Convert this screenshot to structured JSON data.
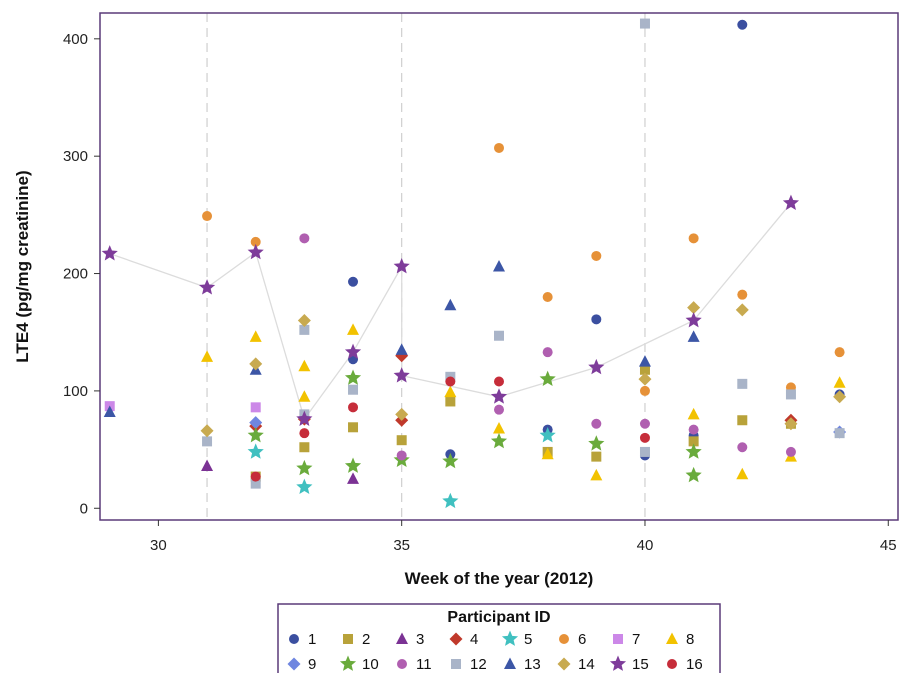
{
  "chart_data": {
    "type": "scatter",
    "title": "",
    "xlabel": "Week of the year (2012)",
    "ylabel": "LTE4 (pg/mg creatinine)",
    "xlim": [
      28.8,
      45.2
    ],
    "ylim": [
      -10,
      422
    ],
    "xticks": [
      30,
      35,
      40,
      45
    ],
    "yticks": [
      0,
      100,
      200,
      300,
      400
    ],
    "reference_lines_x": [
      31,
      35,
      40
    ],
    "grid": false,
    "legend": {
      "title": "Participant ID",
      "position": "bottom"
    },
    "series": [
      {
        "name": "1",
        "marker": "circle",
        "color": "#3B4FA0",
        "points": [
          [
            34,
            127
          ],
          [
            34,
            193
          ],
          [
            36,
            46
          ],
          [
            38,
            67
          ],
          [
            39,
            161
          ],
          [
            40,
            45
          ],
          [
            41,
            62
          ],
          [
            42,
            412
          ],
          [
            44,
            97
          ]
        ]
      },
      {
        "name": "2",
        "marker": "square",
        "color": "#B8A23A",
        "points": [
          [
            32,
            27
          ],
          [
            33,
            52
          ],
          [
            34,
            69
          ],
          [
            35,
            58
          ],
          [
            36,
            91
          ],
          [
            38,
            48
          ],
          [
            39,
            44
          ],
          [
            40,
            118
          ],
          [
            41,
            57
          ],
          [
            42,
            75
          ],
          [
            43,
            72
          ]
        ]
      },
      {
        "name": "3",
        "marker": "triangle",
        "color": "#7B3294",
        "points": [
          [
            31,
            36
          ],
          [
            34,
            25
          ]
        ]
      },
      {
        "name": "4",
        "marker": "diamond",
        "color": "#C0392B",
        "points": [
          [
            32,
            70
          ],
          [
            33,
            76
          ],
          [
            35,
            130
          ],
          [
            35,
            75
          ],
          [
            43,
            75
          ]
        ]
      },
      {
        "name": "5",
        "marker": "star",
        "color": "#40C0C0",
        "points": [
          [
            32,
            48
          ],
          [
            33,
            18
          ],
          [
            36,
            6
          ],
          [
            38,
            62
          ]
        ]
      },
      {
        "name": "6",
        "marker": "circle",
        "color": "#E69138",
        "points": [
          [
            31,
            249
          ],
          [
            32,
            227
          ],
          [
            37,
            307
          ],
          [
            38,
            180
          ],
          [
            39,
            215
          ],
          [
            40,
            100
          ],
          [
            41,
            230
          ],
          [
            42,
            182
          ],
          [
            43,
            103
          ],
          [
            44,
            133
          ]
        ]
      },
      {
        "name": "7",
        "marker": "square",
        "color": "#CC88E8",
        "points": [
          [
            29,
            87
          ],
          [
            32,
            86
          ]
        ]
      },
      {
        "name": "8",
        "marker": "triangle",
        "color": "#F2C200",
        "points": [
          [
            31,
            129
          ],
          [
            32,
            146
          ],
          [
            33,
            121
          ],
          [
            33,
            95
          ],
          [
            34,
            152
          ],
          [
            36,
            99
          ],
          [
            37,
            68
          ],
          [
            38,
            46
          ],
          [
            39,
            28
          ],
          [
            41,
            80
          ],
          [
            42,
            29
          ],
          [
            43,
            44
          ],
          [
            44,
            107
          ]
        ]
      },
      {
        "name": "9",
        "marker": "diamond",
        "color": "#6F86E0",
        "points": [
          [
            32,
            73
          ],
          [
            44,
            65
          ]
        ]
      },
      {
        "name": "10",
        "marker": "star",
        "color": "#6AAB3C",
        "points": [
          [
            32,
            62
          ],
          [
            33,
            34
          ],
          [
            34,
            36
          ],
          [
            34,
            111
          ],
          [
            35,
            41
          ],
          [
            36,
            40
          ],
          [
            37,
            57
          ],
          [
            38,
            110
          ],
          [
            39,
            55
          ],
          [
            41,
            48
          ],
          [
            41,
            28
          ]
        ]
      },
      {
        "name": "11",
        "marker": "circle",
        "color": "#B05FB0",
        "points": [
          [
            33,
            230
          ],
          [
            35,
            45
          ],
          [
            37,
            84
          ],
          [
            38,
            133
          ],
          [
            39,
            72
          ],
          [
            40,
            72
          ],
          [
            41,
            67
          ],
          [
            42,
            52
          ],
          [
            43,
            48
          ]
        ]
      },
      {
        "name": "12",
        "marker": "square",
        "color": "#A9B4C8",
        "points": [
          [
            31,
            57
          ],
          [
            32,
            21
          ],
          [
            33,
            152
          ],
          [
            33,
            80
          ],
          [
            34,
            101
          ],
          [
            36,
            112
          ],
          [
            37,
            147
          ],
          [
            40,
            413
          ],
          [
            40,
            48
          ],
          [
            42,
            106
          ],
          [
            43,
            97
          ],
          [
            44,
            64
          ]
        ]
      },
      {
        "name": "13",
        "marker": "triangle",
        "color": "#3C56A6",
        "points": [
          [
            29,
            82
          ],
          [
            32,
            118
          ],
          [
            35,
            135
          ],
          [
            36,
            173
          ],
          [
            37,
            206
          ],
          [
            40,
            125
          ],
          [
            41,
            146
          ]
        ]
      },
      {
        "name": "14",
        "marker": "diamond",
        "color": "#C8AA50",
        "points": [
          [
            31,
            66
          ],
          [
            32,
            123
          ],
          [
            33,
            160
          ],
          [
            35,
            80
          ],
          [
            40,
            110
          ],
          [
            41,
            171
          ],
          [
            42,
            169
          ],
          [
            43,
            72
          ],
          [
            44,
            95
          ]
        ]
      },
      {
        "name": "15",
        "marker": "star",
        "color": "#7E3C9A",
        "connected": true,
        "points": [
          [
            29,
            217
          ],
          [
            31,
            188
          ],
          [
            32,
            218
          ],
          [
            33,
            76
          ],
          [
            34,
            133
          ],
          [
            35,
            206
          ],
          [
            35,
            113
          ],
          [
            37,
            95
          ],
          [
            39,
            120
          ],
          [
            41,
            160
          ],
          [
            43,
            260
          ]
        ]
      },
      {
        "name": "16",
        "marker": "circle",
        "color": "#C62D3A",
        "points": [
          [
            32,
            27
          ],
          [
            33,
            64
          ],
          [
            34,
            86
          ],
          [
            36,
            108
          ],
          [
            37,
            108
          ],
          [
            40,
            60
          ]
        ]
      }
    ]
  }
}
